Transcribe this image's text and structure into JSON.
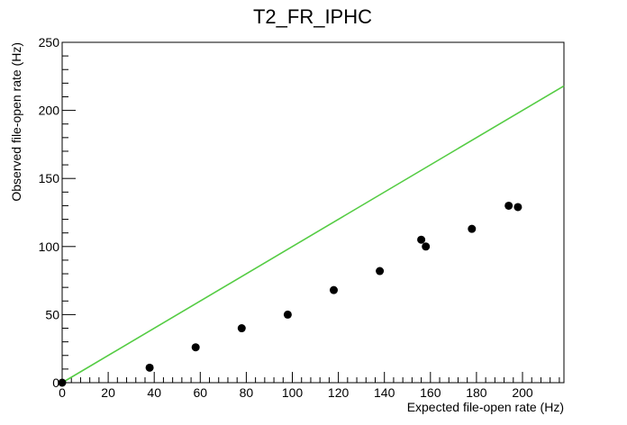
{
  "chart_data": {
    "type": "scatter",
    "title": "T2_FR_IPHC",
    "xlabel": "Expected file-open rate (Hz)",
    "ylabel": "Observed file-open rate (Hz)",
    "xlim": [
      0,
      218
    ],
    "ylim": [
      0,
      250
    ],
    "x_ticks": [
      0,
      20,
      40,
      60,
      80,
      100,
      120,
      140,
      160,
      180,
      200
    ],
    "y_ticks": [
      0,
      50,
      100,
      150,
      200,
      250
    ],
    "grid": false,
    "legend": "none",
    "series": [
      {
        "type": "scatter",
        "color": "#000000",
        "points": [
          {
            "x": 0,
            "y": 0
          },
          {
            "x": 38,
            "y": 11
          },
          {
            "x": 58,
            "y": 26
          },
          {
            "x": 78,
            "y": 40
          },
          {
            "x": 98,
            "y": 50
          },
          {
            "x": 118,
            "y": 68
          },
          {
            "x": 138,
            "y": 82
          },
          {
            "x": 156,
            "y": 105
          },
          {
            "x": 158,
            "y": 100
          },
          {
            "x": 178,
            "y": 113
          },
          {
            "x": 194,
            "y": 130
          },
          {
            "x": 198,
            "y": 129
          }
        ]
      },
      {
        "type": "line",
        "color": "#55cc44",
        "points": [
          {
            "x": 0,
            "y": 0
          },
          {
            "x": 218,
            "y": 218
          }
        ]
      }
    ]
  }
}
